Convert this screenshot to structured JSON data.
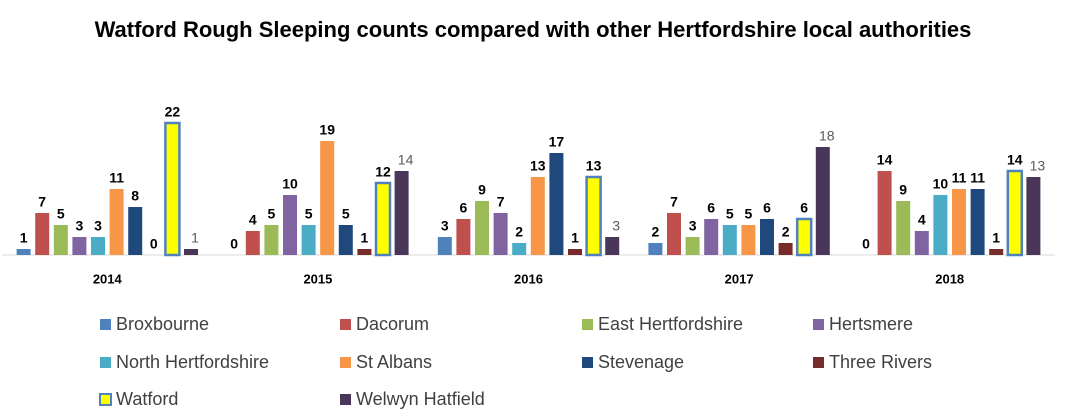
{
  "chart_data": {
    "type": "bar",
    "title": "Watford Rough Sleeping counts compared with other Hertfordshire local authorities",
    "categories": [
      "2014",
      "2015",
      "2016",
      "2017",
      "2018"
    ],
    "series": [
      {
        "name": "Broxbourne",
        "color": "#4f81bd",
        "values": [
          1,
          0,
          3,
          2,
          0
        ]
      },
      {
        "name": "Dacorum",
        "color": "#c0504d",
        "values": [
          7,
          4,
          6,
          7,
          14
        ]
      },
      {
        "name": "East Hertfordshire",
        "color": "#9bbb59",
        "values": [
          5,
          5,
          9,
          3,
          9
        ]
      },
      {
        "name": "Hertsmere",
        "color": "#8064a2",
        "values": [
          3,
          10,
          7,
          6,
          4
        ]
      },
      {
        "name": "North Hertfordshire",
        "color": "#4bacc6",
        "values": [
          3,
          5,
          2,
          5,
          10
        ]
      },
      {
        "name": "St Albans",
        "color": "#f79646",
        "values": [
          11,
          19,
          13,
          5,
          11
        ]
      },
      {
        "name": "Stevenage",
        "color": "#1f497d",
        "values": [
          8,
          5,
          17,
          6,
          11
        ]
      },
      {
        "name": "Three Rivers",
        "color": "#772c2a",
        "values": [
          0,
          1,
          1,
          2,
          1
        ]
      },
      {
        "name": "Watford",
        "color": "#ffff00",
        "values": [
          22,
          12,
          13,
          6,
          14
        ]
      },
      {
        "name": "Welwyn Hatfield",
        "color": "#4a3658",
        "values": [
          1,
          14,
          3,
          18,
          13
        ]
      }
    ]
  }
}
